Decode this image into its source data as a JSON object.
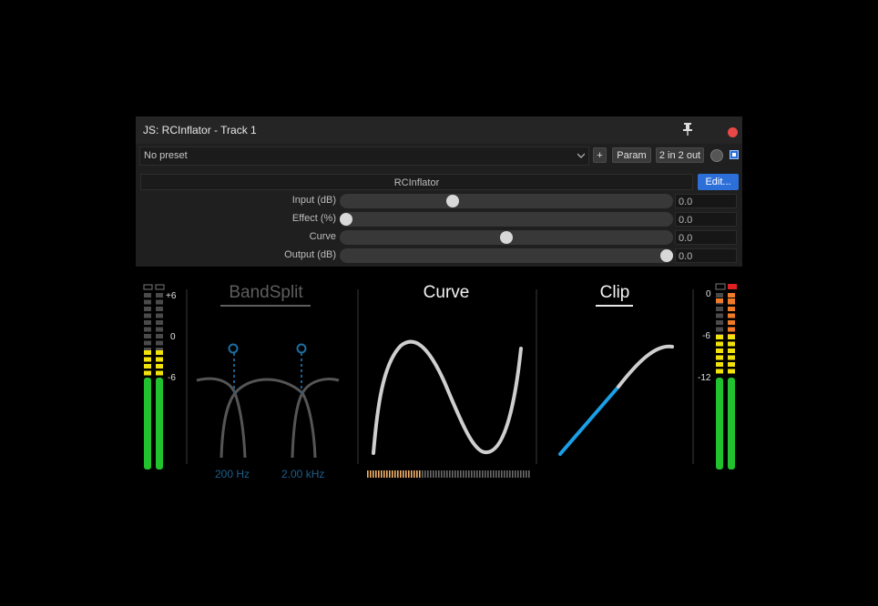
{
  "window": {
    "title": "JS: RCInflator - Track 1",
    "preset": "No preset",
    "buttons": {
      "add": "+",
      "param": "Param",
      "io": "2 in 2 out"
    },
    "plugin_name": "RCInflator",
    "edit_label": "Edit..."
  },
  "sliders": [
    {
      "label": "Input (dB)",
      "value": "0.0",
      "position": 0.34
    },
    {
      "label": "Effect (%)",
      "value": "0.0",
      "position": 0.02
    },
    {
      "label": "Curve",
      "value": "0.0",
      "position": 0.5
    },
    {
      "label": "Output (dB)",
      "value": "0.0",
      "position": 0.98
    }
  ],
  "panels": {
    "bandsplit": {
      "title": "BandSplit",
      "low_freq": "200 Hz",
      "high_freq": "2.00 kHz"
    },
    "curve": {
      "title": "Curve"
    },
    "clip": {
      "title": "Clip"
    }
  },
  "meters": {
    "input": {
      "labels": [
        "+6",
        "0",
        "-6"
      ]
    },
    "output": {
      "labels": [
        "0",
        "-6",
        "-12"
      ]
    }
  },
  "colors": {
    "accent": "#2d6fd8",
    "meter_green": "#22c22e",
    "meter_yellow": "#f2e20c",
    "meter_orange": "#ef7a28",
    "clip_red": "#e02020",
    "clip_blue": "#19a0e6"
  }
}
